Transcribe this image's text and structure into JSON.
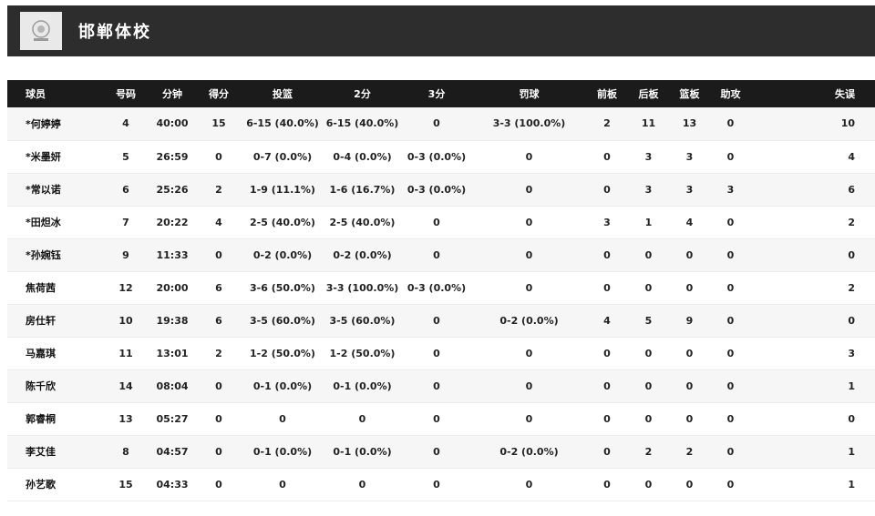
{
  "header": {
    "team_name": "邯郸体校",
    "logo": "team-emblem"
  },
  "colors": {
    "topbar_bg": "#2d2d2d",
    "table_header_bg": "#1b1b1b",
    "row_alt_bg": "#f6f6f6",
    "header_text": "#ffffff",
    "cell_text": "#222222",
    "logo_bg": "#e9e9e9"
  },
  "table": {
    "columns": [
      "球员",
      "号码",
      "分钟",
      "得分",
      "投篮",
      "2分",
      "3分",
      "罚球",
      "前板",
      "后板",
      "篮板",
      "助攻",
      "失误"
    ],
    "rows": [
      [
        "*何婷婷",
        "4",
        "40:00",
        "15",
        "6-15 (40.0%)",
        "6-15 (40.0%)",
        "0",
        "3-3 (100.0%)",
        "2",
        "11",
        "13",
        "0",
        "10"
      ],
      [
        "*米墨妍",
        "5",
        "26:59",
        "0",
        "0-7 (0.0%)",
        "0-4 (0.0%)",
        "0-3 (0.0%)",
        "0",
        "0",
        "3",
        "3",
        "0",
        "4"
      ],
      [
        "*常以诺",
        "6",
        "25:26",
        "2",
        "1-9 (11.1%)",
        "1-6 (16.7%)",
        "0-3 (0.0%)",
        "0",
        "0",
        "3",
        "3",
        "3",
        "6"
      ],
      [
        "*田炟冰",
        "7",
        "20:22",
        "4",
        "2-5 (40.0%)",
        "2-5 (40.0%)",
        "0",
        "0",
        "3",
        "1",
        "4",
        "0",
        "2"
      ],
      [
        "*孙婉钰",
        "9",
        "11:33",
        "0",
        "0-2 (0.0%)",
        "0-2 (0.0%)",
        "0",
        "0",
        "0",
        "0",
        "0",
        "0",
        "0"
      ],
      [
        "焦荷茜",
        "12",
        "20:00",
        "6",
        "3-6 (50.0%)",
        "3-3 (100.0%)",
        "0-3 (0.0%)",
        "0",
        "0",
        "0",
        "0",
        "0",
        "2"
      ],
      [
        "房仕轩",
        "10",
        "19:38",
        "6",
        "3-5 (60.0%)",
        "3-5 (60.0%)",
        "0",
        "0-2 (0.0%)",
        "4",
        "5",
        "9",
        "0",
        "0"
      ],
      [
        "马嘉琪",
        "11",
        "13:01",
        "2",
        "1-2 (50.0%)",
        "1-2 (50.0%)",
        "0",
        "0",
        "0",
        "0",
        "0",
        "0",
        "3"
      ],
      [
        "陈千欣",
        "14",
        "08:04",
        "0",
        "0-1 (0.0%)",
        "0-1 (0.0%)",
        "0",
        "0",
        "0",
        "0",
        "0",
        "0",
        "1"
      ],
      [
        "郭睿桐",
        "13",
        "05:27",
        "0",
        "0",
        "0",
        "0",
        "0",
        "0",
        "0",
        "0",
        "0",
        "0"
      ],
      [
        "李艾佳",
        "8",
        "04:57",
        "0",
        "0-1 (0.0%)",
        "0-1 (0.0%)",
        "0",
        "0-2 (0.0%)",
        "0",
        "2",
        "2",
        "0",
        "1"
      ],
      [
        "孙艺歌",
        "15",
        "04:33",
        "0",
        "0",
        "0",
        "0",
        "0",
        "0",
        "0",
        "0",
        "0",
        "1"
      ]
    ]
  }
}
